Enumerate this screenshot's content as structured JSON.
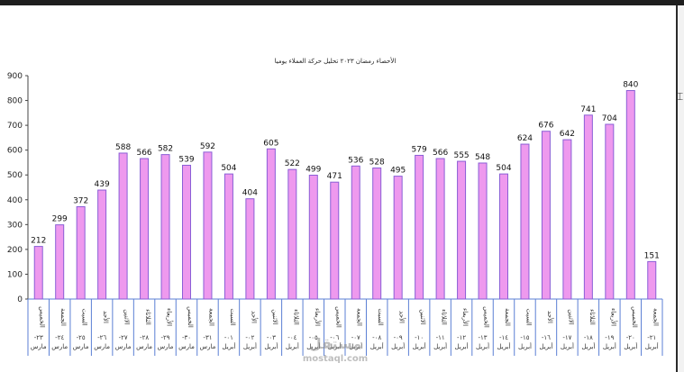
{
  "chart_data": {
    "type": "bar",
    "title": "الأحصاء رمضان ٢٠٢٣ تحليل حركة العملاء يوميا",
    "ylim": [
      0,
      900
    ],
    "yticks": [
      0,
      100,
      200,
      300,
      400,
      500,
      600,
      700,
      800,
      900
    ],
    "grid": false,
    "legend": "none",
    "categories": [
      {
        "day": "الخميس",
        "date": "-٢٣",
        "month": "مارس"
      },
      {
        "day": "الجمعة",
        "date": "-٢٤",
        "month": "مارس"
      },
      {
        "day": "السبت",
        "date": "-٢٥",
        "month": "مارس"
      },
      {
        "day": "الأحد",
        "date": "-٢٦",
        "month": "مارس"
      },
      {
        "day": "الاثنين",
        "date": "-٢٧",
        "month": "مارس"
      },
      {
        "day": "الثلاثاء",
        "date": "-٢٨",
        "month": "مارس"
      },
      {
        "day": "الأربعاء",
        "date": "-٢٩",
        "month": "مارس"
      },
      {
        "day": "الخميس",
        "date": "-٣٠",
        "month": "مارس"
      },
      {
        "day": "الجمعة",
        "date": "-٣١",
        "month": "مارس"
      },
      {
        "day": "السبت",
        "date": "-٠١",
        "month": "أبريل"
      },
      {
        "day": "الأحد",
        "date": "-٠٢",
        "month": "أبريل"
      },
      {
        "day": "الاثنين",
        "date": "-٠٣",
        "month": "أبريل"
      },
      {
        "day": "الثلاثاء",
        "date": "-٠٤",
        "month": "أبريل"
      },
      {
        "day": "الأربعاء",
        "date": "-٠٥",
        "month": "أبريل"
      },
      {
        "day": "الخميس",
        "date": "-٠٦",
        "month": "أبريل"
      },
      {
        "day": "الجمعة",
        "date": "-٠٧",
        "month": "أبريل"
      },
      {
        "day": "السبت",
        "date": "-٠٨",
        "month": "أبريل"
      },
      {
        "day": "الأحد",
        "date": "-٠٩",
        "month": "أبريل"
      },
      {
        "day": "الاثنين",
        "date": "-١٠",
        "month": "أبريل"
      },
      {
        "day": "الثلاثاء",
        "date": "-١١",
        "month": "أبريل"
      },
      {
        "day": "الأربعاء",
        "date": "-١٢",
        "month": "أبريل"
      },
      {
        "day": "الخميس",
        "date": "-١٣",
        "month": "أبريل"
      },
      {
        "day": "الجمعة",
        "date": "-١٤",
        "month": "أبريل"
      },
      {
        "day": "السبت",
        "date": "-١٥",
        "month": "أبريل"
      },
      {
        "day": "الأحد",
        "date": "-١٦",
        "month": "أبريل"
      },
      {
        "day": "الاثنين",
        "date": "-١٧",
        "month": "أبريل"
      },
      {
        "day": "الثلاثاء",
        "date": "-١٨",
        "month": "أبريل"
      },
      {
        "day": "الأربعاء",
        "date": "-١٩",
        "month": "أبريل"
      },
      {
        "day": "الخميس",
        "date": "-٢٠",
        "month": "أبريل"
      },
      {
        "day": "الجمعة",
        "date": "-٢١",
        "month": "أبريل"
      }
    ],
    "values": [
      212,
      299,
      372,
      439,
      588,
      566,
      582,
      539,
      592,
      504,
      404,
      605,
      522,
      499,
      471,
      536,
      528,
      495,
      579,
      566,
      555,
      548,
      504,
      624,
      676,
      642,
      741,
      704,
      840,
      151
    ]
  },
  "colors": {
    "bar_fill": "#ee99ee",
    "bar_stroke": "#8a5fd6",
    "axis": "#444444",
    "category_grid": "#5b7fd4"
  },
  "watermark": {
    "arabic": "مستقل",
    "latin": "mostaql.com"
  }
}
